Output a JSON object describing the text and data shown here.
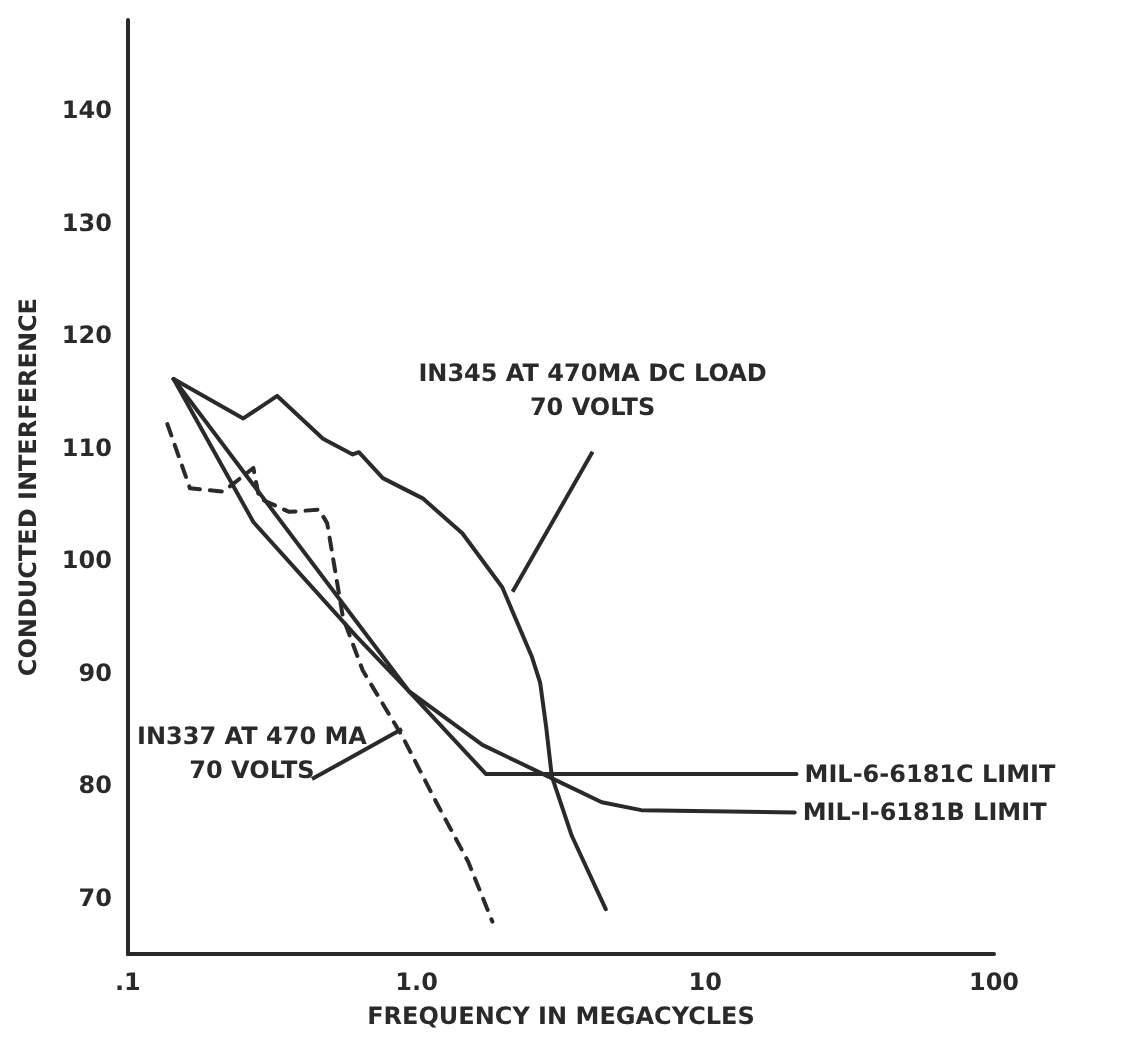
{
  "chart_data": {
    "type": "line",
    "xlabel": "FREQUENCY IN MEGACYCLES",
    "ylabel": "CONDUCTED INTERFERENCE",
    "log": "x",
    "xlim": [
      0.1,
      100
    ],
    "xticks": [
      {
        "value": 0.1,
        "label": ".1"
      },
      {
        "value": 1,
        "label": "1.0"
      },
      10,
      100
    ],
    "ylim": [
      65,
      148
    ],
    "yticks": [
      70,
      80,
      90,
      100,
      110,
      120,
      130,
      140
    ],
    "grid": false,
    "legend": false,
    "marker": "none",
    "series": [
      {
        "color": "#2a2a2a",
        "line_style": "solid",
        "x": [
          0.144,
          0.251,
          0.329,
          0.474,
          0.601,
          0.631,
          0.764,
          1.05,
          1.44,
          1.98,
          2.51,
          2.68,
          2.81,
          2.94,
          3.45,
          4.52
        ],
        "values": [
          116.1,
          112.6,
          114.6,
          110.8,
          109.4,
          109.6,
          107.3,
          105.5,
          102.4,
          97.6,
          91.4,
          89.1,
          85.2,
          80.8,
          75.5,
          69.0
        ]
      },
      {
        "color": "#2a2a2a",
        "line_style": "dashed",
        "x": [
          0.137,
          0.164,
          0.214,
          0.272,
          0.285,
          0.362,
          0.459,
          0.49,
          0.556,
          0.651,
          0.895,
          1.17,
          1.51,
          1.83
        ],
        "values": [
          112.1,
          106.4,
          106.1,
          108.2,
          105.5,
          104.3,
          104.5,
          103.3,
          94.9,
          90.2,
          84.3,
          78.5,
          73.2,
          67.9
        ]
      },
      {
        "name": "MIL-6-6181C LIMIT",
        "color": "#2a2a2a",
        "line_style": "solid",
        "x": [
          0.144,
          0.938,
          1.74,
          20.7
        ],
        "values": [
          116.1,
          88.4,
          81.0,
          81.0
        ]
      },
      {
        "name": "MIL-I-6181B LIMIT",
        "color": "#2a2a2a",
        "line_style": "solid",
        "x": [
          0.144,
          0.272,
          0.621,
          0.938,
          1.69,
          2.85,
          4.38,
          6.0,
          20.4
        ],
        "values": [
          116.1,
          103.4,
          93.2,
          88.4,
          83.6,
          80.8,
          78.5,
          77.8,
          77.6
        ]
      }
    ],
    "annotations": [
      {
        "text": "IN345 AT 470MA DC LOAD\n70 VOLTS",
        "x": 2.15,
        "y": 97.2
      },
      {
        "text": "IN337 AT 470 MA\n70 VOLTS",
        "x": 0.89,
        "y": 85
      }
    ]
  }
}
